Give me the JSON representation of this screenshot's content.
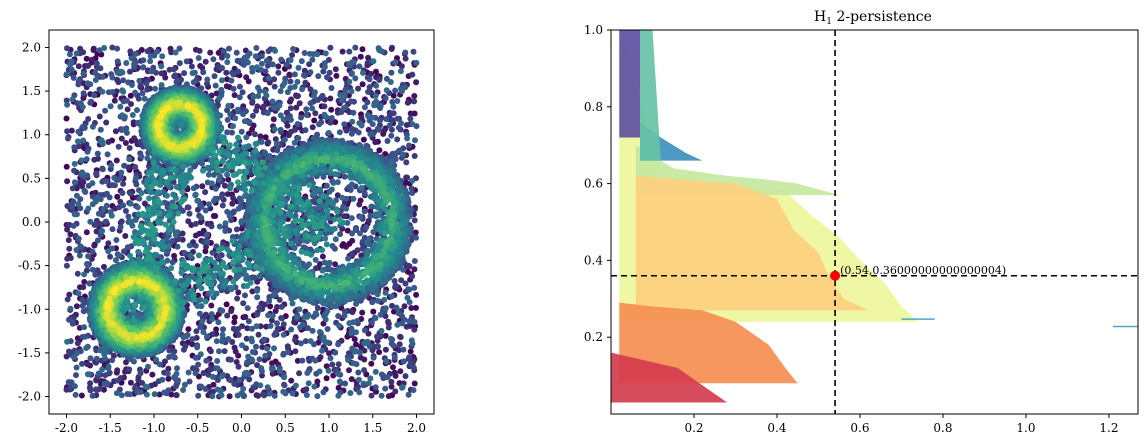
{
  "chart_data": [
    {
      "type": "scatter",
      "title": "",
      "xlabel": "",
      "ylabel": "",
      "xlim": [
        -2.2,
        2.2
      ],
      "ylim": [
        -2.2,
        2.2
      ],
      "x_ticks": [
        "-2.0",
        "-1.5",
        "-1.0",
        "-0.5",
        "0.0",
        "0.5",
        "1.0",
        "1.5",
        "2.0"
      ],
      "y_ticks": [
        "2.0",
        "1.5",
        "1.0",
        "0.5",
        "0.0",
        "-0.5",
        "-1.0",
        "-1.5",
        "-2.0"
      ],
      "x_tick_values": [
        -2.0,
        -1.5,
        -1.0,
        -0.5,
        0.0,
        0.5,
        1.0,
        1.5,
        2.0
      ],
      "y_tick_values": [
        2.0,
        1.5,
        1.0,
        0.5,
        0.0,
        -0.5,
        -1.0,
        -1.5,
        -2.0
      ],
      "colormap": "viridis",
      "structures": [
        {
          "kind": "uniform_noise",
          "x_range": [
            -2.0,
            2.0
          ],
          "y_range": [
            -2.0,
            2.0
          ],
          "density": "low"
        },
        {
          "kind": "annulus",
          "center": [
            -0.7,
            1.1
          ],
          "inner_radius": 0.05,
          "outer_radius": 0.45,
          "density": "high"
        },
        {
          "kind": "annulus",
          "center": [
            -1.2,
            -1.0
          ],
          "inner_radius": 0.1,
          "outer_radius": 0.55,
          "density": "high"
        },
        {
          "kind": "annulus",
          "center": [
            1.0,
            0.0
          ],
          "inner_radius": 0.5,
          "outer_radius": 0.95,
          "density": "medium"
        }
      ],
      "colors": {
        "low_density": "#440154",
        "mid_density": "#31688e",
        "high_density": "#fde725"
      }
    },
    {
      "type": "heatmap",
      "title": "H",
      "title_subscript": "1",
      "title_rest": " 2-persistence",
      "xlabel": "",
      "ylabel": "",
      "xlim": [
        0.0,
        1.27
      ],
      "ylim": [
        0.0,
        1.0
      ],
      "x_ticks": [
        "0.2",
        "0.4",
        "0.6",
        "0.8",
        "1.0",
        "1.2"
      ],
      "x_tick_values": [
        0.2,
        0.4,
        0.6,
        0.8,
        1.0,
        1.2
      ],
      "y_ticks": [
        "1.0",
        "0.8",
        "0.6",
        "0.4",
        "0.2"
      ],
      "y_tick_values": [
        1.0,
        0.8,
        0.6,
        0.4,
        0.2
      ],
      "point": {
        "x": 0.54,
        "y": 0.36,
        "label": "(0.54,0.36000000000000004)",
        "color": "#ff0000"
      },
      "vline_x": 0.54,
      "hline_y": 0.36,
      "layers": [
        {
          "name": "yellow-green",
          "color": "#eef59c",
          "profile": [
            [
              0.02,
              1.0
            ],
            [
              0.12,
              0.62
            ],
            [
              0.3,
              0.6
            ],
            [
              0.42,
              0.58
            ],
            [
              0.48,
              0.52
            ],
            [
              0.55,
              0.46
            ],
            [
              0.6,
              0.4
            ],
            [
              0.66,
              0.34
            ],
            [
              0.7,
              0.28
            ],
            [
              0.74,
              0.24
            ],
            [
              0.02,
              0.24
            ]
          ]
        },
        {
          "name": "light-green",
          "color": "#c7e79f",
          "profile": [
            [
              0.06,
              0.7
            ],
            [
              0.15,
              0.64
            ],
            [
              0.28,
              0.62
            ],
            [
              0.38,
              0.61
            ],
            [
              0.45,
              0.6
            ],
            [
              0.55,
              0.57
            ],
            [
              0.06,
              0.57
            ]
          ]
        },
        {
          "name": "light-orange",
          "color": "#fdd07e",
          "profile": [
            [
              0.06,
              0.62
            ],
            [
              0.3,
              0.6
            ],
            [
              0.4,
              0.56
            ],
            [
              0.44,
              0.48
            ],
            [
              0.5,
              0.42
            ],
            [
              0.52,
              0.37
            ],
            [
              0.56,
              0.3
            ],
            [
              0.62,
              0.27
            ],
            [
              0.06,
              0.27
            ]
          ]
        },
        {
          "name": "orange",
          "color": "#f58e52",
          "profile": [
            [
              0.02,
              0.29
            ],
            [
              0.1,
              0.28
            ],
            [
              0.22,
              0.27
            ],
            [
              0.3,
              0.24
            ],
            [
              0.38,
              0.18
            ],
            [
              0.42,
              0.12
            ],
            [
              0.45,
              0.08
            ],
            [
              0.02,
              0.08
            ]
          ]
        },
        {
          "name": "red",
          "color": "#d43d4f",
          "profile": [
            [
              0.0,
              0.16
            ],
            [
              0.08,
              0.14
            ],
            [
              0.16,
              0.12
            ],
            [
              0.24,
              0.06
            ],
            [
              0.28,
              0.03
            ],
            [
              0.0,
              0.03
            ]
          ]
        },
        {
          "name": "blue-violet",
          "color": "#5e4fa2",
          "profile": [
            [
              0.02,
              1.0
            ],
            [
              0.07,
              1.0
            ],
            [
              0.07,
              0.72
            ],
            [
              0.02,
              0.72
            ]
          ]
        },
        {
          "name": "blue",
          "color": "#3f8fbf",
          "profile": [
            [
              0.07,
              0.76
            ],
            [
              0.12,
              0.72
            ],
            [
              0.18,
              0.68
            ],
            [
              0.22,
              0.66
            ],
            [
              0.07,
              0.66
            ]
          ]
        },
        {
          "name": "teal",
          "color": "#66c2a5",
          "profile": [
            [
              0.07,
              1.0
            ],
            [
              0.1,
              1.0
            ],
            [
              0.12,
              0.66
            ],
            [
              0.07,
              0.66
            ]
          ]
        }
      ],
      "segments": [
        {
          "x0": 0.7,
          "x1": 0.78,
          "y": 0.247,
          "color": "#4ba6c9"
        },
        {
          "x0": 1.21,
          "x1": 1.27,
          "y": 0.228,
          "color": "#4ba6c9"
        }
      ]
    }
  ]
}
